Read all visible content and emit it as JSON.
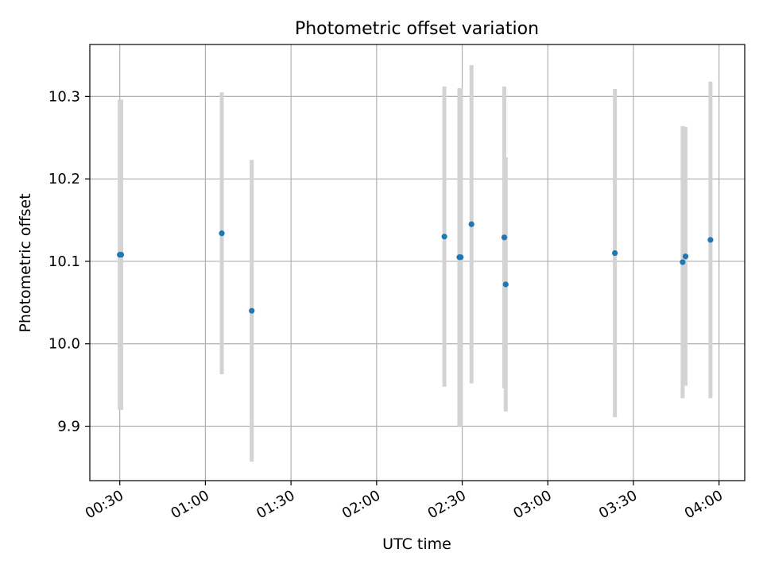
{
  "chart_data": {
    "type": "scatter",
    "title": "Photometric offset variation",
    "xlabel": "UTC time",
    "ylabel": "Photometric offset",
    "xlim": [
      "00:19:30",
      "04:09:00"
    ],
    "ylim": [
      9.834,
      10.363
    ],
    "grid": true,
    "x_ticks": [
      "00:30",
      "01:00",
      "01:30",
      "02:00",
      "02:30",
      "03:00",
      "03:30",
      "04:00"
    ],
    "y_ticks": [
      9.9,
      10.0,
      10.1,
      10.2,
      10.3
    ],
    "y_tick_labels": [
      "9.9",
      "10.0",
      "10.1",
      "10.2",
      "10.3"
    ],
    "series": [
      {
        "marker_color": "#1f77b4",
        "errorbar_color": "#d3d3d3",
        "points": [
          {
            "x": "00:30:00",
            "y": 10.108,
            "err": 0.188
          },
          {
            "x": "00:30:30",
            "y": 10.108,
            "err": 0.188
          },
          {
            "x": "01:05:45",
            "y": 10.134,
            "err": 0.171
          },
          {
            "x": "01:16:15",
            "y": 10.04,
            "err": 0.183
          },
          {
            "x": "02:23:45",
            "y": 10.13,
            "err": 0.182
          },
          {
            "x": "02:29:00",
            "y": 10.105,
            "err": 0.205
          },
          {
            "x": "02:29:30",
            "y": 10.105,
            "err": 0.205
          },
          {
            "x": "02:33:15",
            "y": 10.145,
            "err": 0.193
          },
          {
            "x": "02:44:45",
            "y": 10.129,
            "err": 0.183
          },
          {
            "x": "02:45:15",
            "y": 10.072,
            "err": 0.154
          },
          {
            "x": "03:23:30",
            "y": 10.11,
            "err": 0.199
          },
          {
            "x": "03:47:15",
            "y": 10.099,
            "err": 0.165
          },
          {
            "x": "03:48:15",
            "y": 10.106,
            "err": 0.157
          },
          {
            "x": "03:57:00",
            "y": 10.126,
            "err": 0.192
          }
        ]
      }
    ]
  }
}
